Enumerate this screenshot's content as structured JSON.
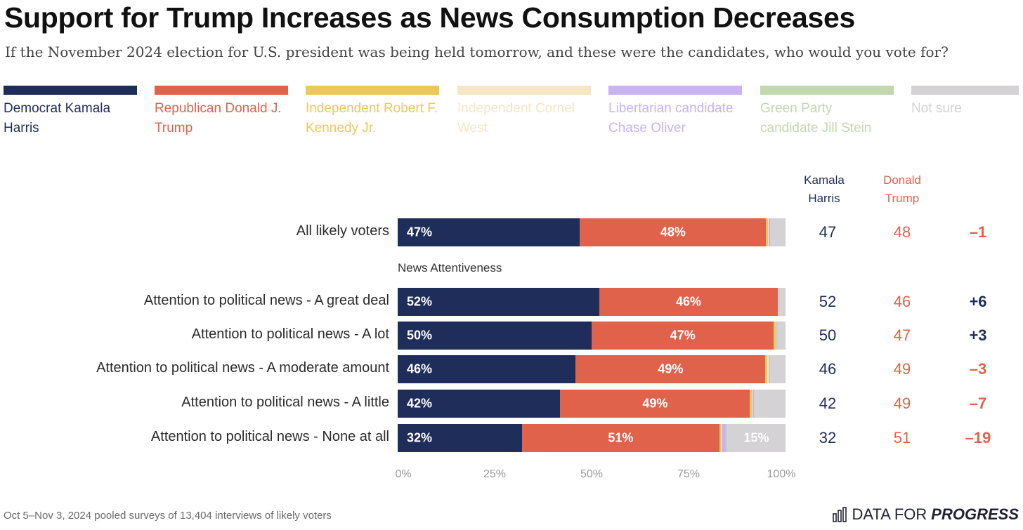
{
  "header": {
    "title": "Support for Trump Increases as News Consumption Decreases",
    "subtitle": "If the November 2024 election for U.S. president was being held tomorrow, and these were the candidates, who would you vote for?"
  },
  "colors": {
    "harris": "#1f2d5a",
    "trump": "#e0624a",
    "kennedy": "#ecc85a",
    "west": "#f6e7c4",
    "oliver": "#c8b4f0",
    "stein": "#c2d8ae",
    "not_sure": "#d4d2d4"
  },
  "legend": [
    {
      "label": "Democrat Kamala Harris",
      "color": "#1f2d5a"
    },
    {
      "label": "Republican Donald J. Trump",
      "color": "#e0624a"
    },
    {
      "label": "Independent Robert F. Kennedy Jr.",
      "color": "#ecc85a"
    },
    {
      "label": "Independent Cornel West",
      "color": "#f6e7c4"
    },
    {
      "label": "Libertarian candidate Chase Oliver",
      "color": "#c8b4f0"
    },
    {
      "label": "Green Party candidate Jill Stein",
      "color": "#c2d8ae"
    },
    {
      "label": "Not sure",
      "color": "#d4d2d4"
    }
  ],
  "columns": {
    "harris": "Kamala Harris",
    "trump": "Donald Trump"
  },
  "chart_data": {
    "type": "bar",
    "stacked": true,
    "orientation": "horizontal",
    "title": "Support for Trump Increases as News Consumption Decreases",
    "subtitle": "If the November 2024 election for U.S. president was being held tomorrow, and these were the candidates, who would you vote for?",
    "section_label": "News Attentiveness",
    "categories": [
      "All likely voters",
      "Attention to political news - A great deal",
      "Attention to political news - A lot",
      "Attention to political news - A moderate amount",
      "Attention to political news - A little",
      "Attention to political news - None at all"
    ],
    "series": [
      {
        "name": "Democrat Kamala Harris",
        "values": [
          47,
          52,
          50,
          46,
          42,
          32
        ]
      },
      {
        "name": "Republican Donald J. Trump",
        "values": [
          48,
          46,
          47,
          49,
          49,
          51
        ]
      },
      {
        "name": "Independent Robert F. Kennedy Jr.",
        "values": [
          0.5,
          0,
          0.4,
          0.5,
          0.5,
          0.3
        ]
      },
      {
        "name": "Independent Cornel West",
        "values": [
          0.2,
          0,
          0.2,
          0.3,
          0.2,
          0.3
        ]
      },
      {
        "name": "Libertarian candidate Chase Oliver",
        "values": [
          0.3,
          0,
          0.2,
          0.2,
          0.3,
          1.0
        ]
      },
      {
        "name": "Green Party candidate Jill Stein",
        "values": [
          0,
          0,
          0.2,
          0.2,
          0.2,
          0.4
        ]
      },
      {
        "name": "Not sure",
        "values": [
          4,
          2,
          2,
          4,
          8,
          15
        ]
      }
    ],
    "value_labels": [
      [
        "47%",
        "48%",
        ""
      ],
      [
        "52%",
        "46%",
        ""
      ],
      [
        "50%",
        "47%",
        ""
      ],
      [
        "46%",
        "49%",
        ""
      ],
      [
        "42%",
        "49%",
        ""
      ],
      [
        "32%",
        "51%",
        "15%"
      ]
    ],
    "table": {
      "harris": [
        "47",
        "52",
        "50",
        "46",
        "42",
        "32"
      ],
      "trump": [
        "48",
        "46",
        "47",
        "49",
        "49",
        "51"
      ],
      "margin": [
        "–1",
        "+6",
        "+3",
        "–3",
        "–7",
        "–19"
      ],
      "margin_color": [
        "#e0624a",
        "#1f2d5a",
        "#1f2d5a",
        "#e0624a",
        "#e0624a",
        "#e0624a"
      ]
    },
    "x_ticks": [
      "0%",
      "25%",
      "50%",
      "75%",
      "100%"
    ],
    "xlim": [
      0,
      100
    ],
    "grid": false,
    "legend_position": "top"
  },
  "footer": {
    "note": "Oct 5–Nov 3, 2024 pooled surveys of 13,404 interviews of likely voters",
    "brand_prefix": "DATA FOR",
    "brand_suffix": "PROGRESS"
  }
}
